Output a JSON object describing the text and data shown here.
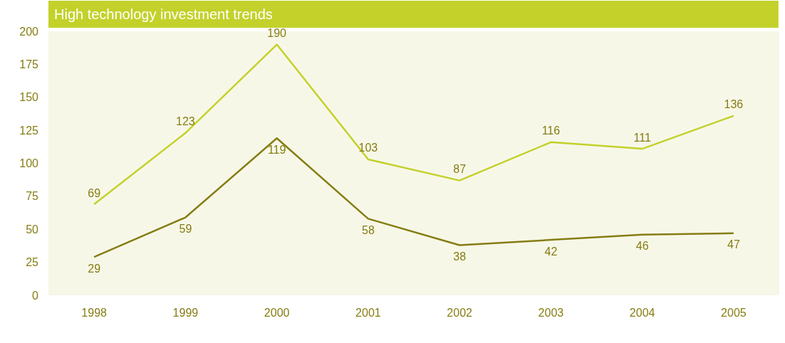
{
  "chart_data": {
    "type": "line",
    "title": "High technology investment trends",
    "categories": [
      "1998",
      "1999",
      "2000",
      "2001",
      "2002",
      "2003",
      "2004",
      "2005"
    ],
    "series": [
      {
        "color": "#c3d12a",
        "values": [
          69,
          123,
          190,
          103,
          87,
          116,
          111,
          136
        ]
      },
      {
        "color": "#857d12",
        "values": [
          29,
          59,
          119,
          58,
          38,
          42,
          46,
          47
        ]
      }
    ],
    "ylim": [
      0,
      200
    ],
    "yticks": [
      0,
      25,
      50,
      75,
      100,
      125,
      150,
      175,
      200
    ],
    "grid": false,
    "legend": false,
    "marker": "none",
    "line_style": "solid",
    "data_labels": true
  }
}
